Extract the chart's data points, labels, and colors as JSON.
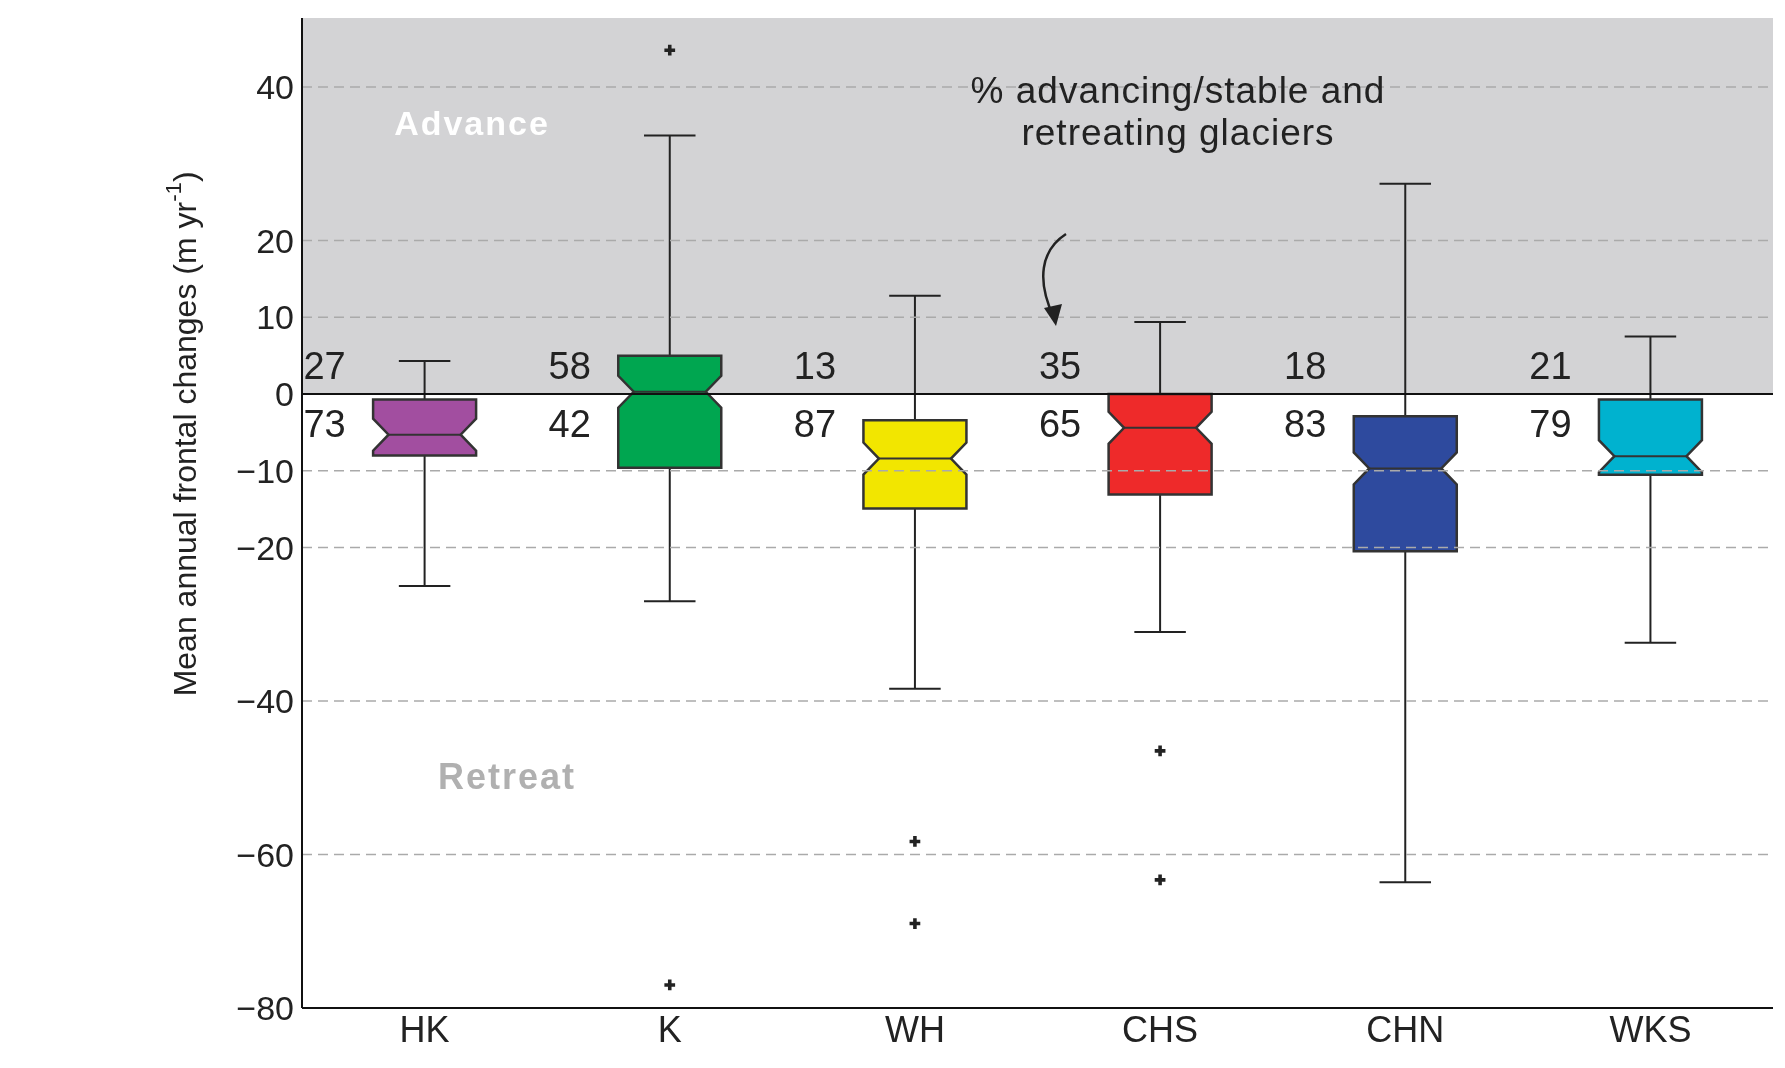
{
  "chart_data": {
    "type": "box",
    "ylabel": "Mean annual frontal changes (m yr$^{-1}$)",
    "categories": [
      "HK",
      "K",
      "WH",
      "CHS",
      "CHN",
      "WKS"
    ],
    "boxes": [
      {
        "low": -25,
        "q1": -8,
        "median": -5.3,
        "q3": -0.7,
        "high": 4.3
      },
      {
        "low": -27,
        "q1": -9.6,
        "median": 0.3,
        "q3": 5,
        "high": 33.7,
        "outliers": [
          44.8,
          -77
        ]
      },
      {
        "low": -38.4,
        "q1": -14.9,
        "median": -8.4,
        "q3": -3.4,
        "high": 12.8,
        "outliers": [
          -58.3,
          -69
        ]
      },
      {
        "low": -31,
        "q1": -13.1,
        "median": -4.4,
        "q3": 0,
        "high": 9.4,
        "outliers": [
          -46.5,
          -63.3
        ]
      },
      {
        "low": -63.6,
        "q1": -20.5,
        "median": -9.7,
        "q3": -2.9,
        "high": 27.4
      },
      {
        "low": -32.4,
        "q1": -10.5,
        "median": -8.1,
        "q3": -0.7,
        "high": 7.5
      }
    ],
    "colors": [
      "#a24ea0",
      "#00a650",
      "#f2e600",
      "#ee2a2a",
      "#2e4a9e",
      "#00b2cf"
    ],
    "ylim": [
      -80,
      49
    ],
    "yticks": [
      40,
      20,
      10,
      0,
      -10,
      -20,
      -40,
      -60,
      -80
    ],
    "grid": "y",
    "bands": [
      {
        "axis": "y",
        "from": 0,
        "to": 49,
        "label": "Advance",
        "color": "#d3d3d5"
      }
    ],
    "annotations": [
      "% advancing/stable and retreating glaciers",
      "Retreat",
      "27",
      "73",
      "58",
      "42",
      "13",
      "87",
      "35",
      "65",
      "18",
      "83",
      "21",
      "79"
    ]
  }
}
